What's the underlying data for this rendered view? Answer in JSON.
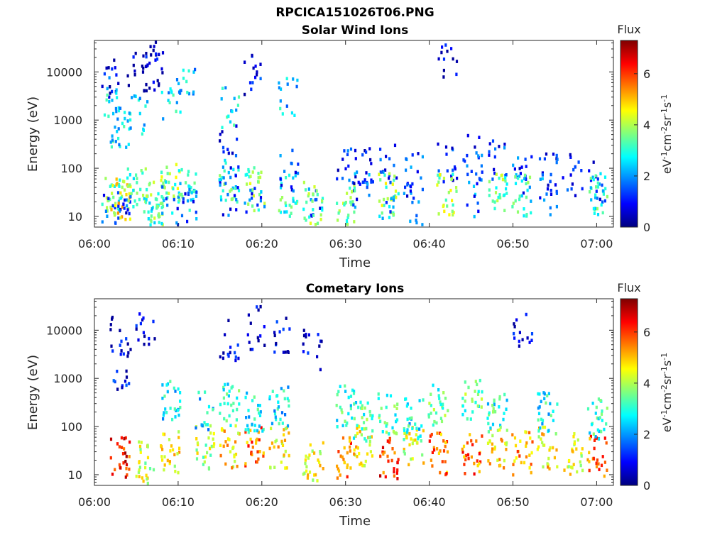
{
  "figure": {
    "title": "RPCICA151026T06.PNG"
  },
  "colormap": {
    "name": "jet",
    "stops": [
      "#00007f",
      "#0000ff",
      "#007fff",
      "#00ffff",
      "#7fff7f",
      "#ffff00",
      "#ff7f00",
      "#ff0000",
      "#7f0000"
    ]
  },
  "chart_data": [
    {
      "type": "heatmap",
      "title": "Solar Wind Ions",
      "xlabel": "Time",
      "ylabel": "Energy (eV)",
      "xlim": [
        "06:00",
        "07:02"
      ],
      "ylim": [
        6,
        45000
      ],
      "yscale": "log",
      "xticks": [
        "06:00",
        "06:10",
        "06:20",
        "06:30",
        "06:40",
        "06:50",
        "07:00"
      ],
      "yticks": [
        "10",
        "100",
        "1000",
        "10000"
      ],
      "colorbar": {
        "label": "Flux",
        "unit": "eV-1cm-2sr-1s-1",
        "range": [
          0,
          7.3
        ],
        "ticks": [
          "0",
          "2",
          "4",
          "6"
        ]
      },
      "data": [
        {
          "t": "06:02",
          "bursts": [
            {
              "e": 30,
              "f": 3.5
            },
            {
              "e": 12,
              "f": 1.5
            },
            {
              "e": 9000,
              "f": 0.5
            },
            {
              "e": 3000,
              "f": 2.5
            }
          ]
        },
        {
          "t": "06:03",
          "bursts": [
            {
              "e": 25,
              "f": 4.6
            },
            {
              "e": 15,
              "f": 1.2
            },
            {
              "e": 800,
              "f": 2.6
            }
          ]
        },
        {
          "t": "06:05",
          "bursts": [
            {
              "e": 40,
              "f": 3.2
            },
            {
              "e": 12000,
              "f": 0.4
            },
            {
              "e": 1500,
              "f": 2.4
            }
          ]
        },
        {
          "t": "06:07",
          "bursts": [
            {
              "e": 20,
              "f": 3.4
            },
            {
              "e": 10,
              "f": 3.0
            },
            {
              "e": 25000,
              "f": 0.5
            },
            {
              "e": 12000,
              "f": 0.6
            }
          ]
        },
        {
          "t": "06:09",
          "bursts": [
            {
              "e": 50,
              "f": 3.8
            },
            {
              "e": 20,
              "f": 2.0
            },
            {
              "e": 3000,
              "f": 2.5
            }
          ]
        },
        {
          "t": "06:11",
          "bursts": [
            {
              "e": 40,
              "f": 3.0
            },
            {
              "e": 15,
              "f": 1.5
            },
            {
              "e": 5000,
              "f": 2.3
            }
          ]
        },
        {
          "t": "06:16",
          "bursts": [
            {
              "e": 60,
              "f": 3.0
            },
            {
              "e": 30,
              "f": 1.4
            },
            {
              "e": 300,
              "f": 1.2
            },
            {
              "e": 2000,
              "f": 2.5
            }
          ]
        },
        {
          "t": "06:19",
          "bursts": [
            {
              "e": 40,
              "f": 3.6
            },
            {
              "e": 15,
              "f": 1.5
            },
            {
              "e": 10000,
              "f": 0.8
            }
          ]
        },
        {
          "t": "06:23",
          "bursts": [
            {
              "e": 30,
              "f": 3.2
            },
            {
              "e": 100,
              "f": 1.3
            },
            {
              "e": 3000,
              "f": 2.4
            }
          ]
        },
        {
          "t": "06:26",
          "bursts": [
            {
              "e": 15,
              "f": 1.5
            },
            {
              "e": 20,
              "f": 3.6
            }
          ]
        },
        {
          "t": "06:30",
          "bursts": [
            {
              "e": 100,
              "f": 1.2
            },
            {
              "e": 20,
              "f": 3.5
            }
          ]
        },
        {
          "t": "06:32",
          "bursts": [
            {
              "e": 100,
              "f": 1.1
            },
            {
              "e": 40,
              "f": 1.5
            }
          ]
        },
        {
          "t": "06:35",
          "bursts": [
            {
              "e": 150,
              "f": 1.3
            },
            {
              "e": 30,
              "f": 3.8
            },
            {
              "e": 10,
              "f": 1.8
            }
          ]
        },
        {
          "t": "06:38",
          "bursts": [
            {
              "e": 80,
              "f": 1.3
            },
            {
              "e": 20,
              "f": 1.5
            }
          ]
        },
        {
          "t": "06:42",
          "bursts": [
            {
              "e": 150,
              "f": 1.3
            },
            {
              "e": 30,
              "f": 3.8
            },
            {
              "e": 18000,
              "f": 0.5
            }
          ]
        },
        {
          "t": "06:45",
          "bursts": [
            {
              "e": 200,
              "f": 1.2
            },
            {
              "e": 30,
              "f": 1.6
            }
          ]
        },
        {
          "t": "06:48",
          "bursts": [
            {
              "e": 150,
              "f": 1.3
            },
            {
              "e": 30,
              "f": 3.5
            }
          ]
        },
        {
          "t": "06:51",
          "bursts": [
            {
              "e": 80,
              "f": 1.3
            },
            {
              "e": 30,
              "f": 3.0
            }
          ]
        },
        {
          "t": "06:54",
          "bursts": [
            {
              "e": 80,
              "f": 1.3
            },
            {
              "e": 30,
              "f": 1.5
            }
          ]
        },
        {
          "t": "06:57",
          "bursts": [
            {
              "e": 80,
              "f": 1.3
            }
          ]
        },
        {
          "t": "07:00",
          "bursts": [
            {
              "e": 60,
              "f": 1.3
            },
            {
              "e": 30,
              "f": 3.0
            }
          ]
        }
      ]
    },
    {
      "type": "heatmap",
      "title": "Cometary Ions",
      "xlabel": "Time",
      "ylabel": "Energy (eV)",
      "xlim": [
        "06:00",
        "07:02"
      ],
      "ylim": [
        6,
        45000
      ],
      "yscale": "log",
      "xticks": [
        "06:00",
        "06:10",
        "06:20",
        "06:30",
        "06:40",
        "06:50",
        "07:00"
      ],
      "yticks": [
        "10",
        "100",
        "1000",
        "10000"
      ],
      "colorbar": {
        "label": "Flux",
        "unit": "eV-1cm-2sr-1s-1",
        "range": [
          0,
          7.3
        ],
        "ticks": [
          "0",
          "2",
          "4",
          "6"
        ]
      },
      "data": [
        {
          "t": "06:03",
          "bursts": [
            {
              "e": 25,
              "f": 6.2
            },
            {
              "e": 8000,
              "f": 0.6
            },
            {
              "e": 1500,
              "f": 0.8
            }
          ]
        },
        {
          "t": "06:06",
          "bursts": [
            {
              "e": 20,
              "f": 4.2
            },
            {
              "e": 9000,
              "f": 0.6
            }
          ]
        },
        {
          "t": "06:09",
          "bursts": [
            {
              "e": 30,
              "f": 4.5
            },
            {
              "e": 400,
              "f": 2.6
            }
          ]
        },
        {
          "t": "06:13",
          "bursts": [
            {
              "e": 40,
              "f": 4.0
            },
            {
              "e": 200,
              "f": 2.5
            }
          ]
        },
        {
          "t": "06:16",
          "bursts": [
            {
              "e": 40,
              "f": 4.8
            },
            {
              "e": 300,
              "f": 3.0
            },
            {
              "e": 7000,
              "f": 0.6
            }
          ]
        },
        {
          "t": "06:19",
          "bursts": [
            {
              "e": 40,
              "f": 5.6
            },
            {
              "e": 200,
              "f": 2.8
            },
            {
              "e": 12000,
              "f": 0.5
            }
          ]
        },
        {
          "t": "06:22",
          "bursts": [
            {
              "e": 40,
              "f": 4.6
            },
            {
              "e": 300,
              "f": 2.6
            },
            {
              "e": 10000,
              "f": 0.6
            }
          ]
        },
        {
          "t": "06:26",
          "bursts": [
            {
              "e": 20,
              "f": 4.4
            },
            {
              "e": 4000,
              "f": 0.6
            }
          ]
        },
        {
          "t": "06:30",
          "bursts": [
            {
              "e": 25,
              "f": 5.5
            },
            {
              "e": 300,
              "f": 3.0
            }
          ]
        },
        {
          "t": "06:32",
          "bursts": [
            {
              "e": 40,
              "f": 4.7
            },
            {
              "e": 150,
              "f": 3.2
            }
          ]
        },
        {
          "t": "06:35",
          "bursts": [
            {
              "e": 25,
              "f": 6.0
            },
            {
              "e": 200,
              "f": 3.3
            }
          ]
        },
        {
          "t": "06:38",
          "bursts": [
            {
              "e": 40,
              "f": 4.3
            },
            {
              "e": 150,
              "f": 2.8
            }
          ]
        },
        {
          "t": "06:41",
          "bursts": [
            {
              "e": 30,
              "f": 5.5
            },
            {
              "e": 300,
              "f": 3.3
            }
          ]
        },
        {
          "t": "06:45",
          "bursts": [
            {
              "e": 30,
              "f": 5.6
            },
            {
              "e": 400,
              "f": 3.4
            }
          ]
        },
        {
          "t": "06:48",
          "bursts": [
            {
              "e": 40,
              "f": 4.8
            },
            {
              "e": 200,
              "f": 3.0
            }
          ]
        },
        {
          "t": "06:51",
          "bursts": [
            {
              "e": 30,
              "f": 5.2
            },
            {
              "e": 10000,
              "f": 0.6
            }
          ]
        },
        {
          "t": "06:54",
          "bursts": [
            {
              "e": 40,
              "f": 4.6
            },
            {
              "e": 200,
              "f": 2.8
            }
          ]
        },
        {
          "t": "06:57",
          "bursts": [
            {
              "e": 30,
              "f": 4.5
            }
          ]
        },
        {
          "t": "07:00",
          "bursts": [
            {
              "e": 25,
              "f": 5.6
            },
            {
              "e": 150,
              "f": 3.0
            }
          ]
        }
      ]
    }
  ]
}
